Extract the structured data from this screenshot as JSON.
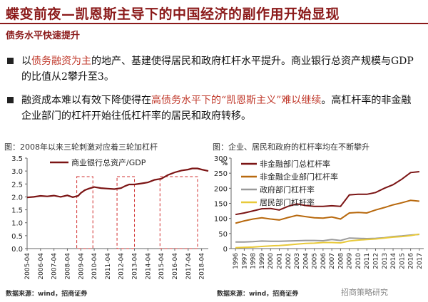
{
  "header": {
    "title": "蝶变前夜—凯恩斯主导下的中国经济的副作用开始显现",
    "subtitle": "债务水平快速提升"
  },
  "bullets": [
    {
      "t1": "以",
      "hl": "债务融资为主",
      "t2": "的地产、基建使得居民和政府杠杆水平提升。商业银行总资产规模与GDP的比值从2攀升至3。"
    },
    {
      "t1": "融资成本难以有效下降使得在",
      "hl": "高债务水平下的“凯恩斯主义”难以继续",
      "t2": "。高杠杆率的非金融企业部门的杠杆开始往低杠杆率的居民和政府转移。"
    }
  ],
  "captions": {
    "left": "图：2008年以来三轮刺激对应着三轮加杠杆",
    "right": "图：企业、居民和政府的杠杆率均在不断攀升"
  },
  "sources": {
    "left": "数据来源：wind，招商证券",
    "right": "数据来源：wind，招商证券"
  },
  "watermark": "招商策略研究",
  "chart_data": [
    {
      "type": "line",
      "title": "",
      "legend": [
        "商业银行总资产/GDP"
      ],
      "x": [
        "2005-04",
        "2006-04",
        "2007-04",
        "2008-04",
        "2009-04",
        "2010-04",
        "2011-04",
        "2012-04",
        "2013-04",
        "2014-04",
        "2015-04",
        "2016-04",
        "2017-04",
        "2018-04"
      ],
      "ylim": [
        0,
        3.5
      ],
      "yticks": [
        "0.0",
        "0.5",
        "1.0",
        "1.5",
        "2.0",
        "2.5",
        "3.0",
        "3.5"
      ],
      "series": [
        {
          "name": "商业银行总资产/GDP",
          "color": "#7b1414",
          "x": [
            2005.0,
            2005.5,
            2006.0,
            2006.5,
            2007.0,
            2007.5,
            2008.0,
            2008.4,
            2008.8,
            2009.0,
            2009.3,
            2009.6,
            2010.0,
            2010.5,
            2011.0,
            2011.5,
            2012.0,
            2012.3,
            2012.6,
            2013.0,
            2013.5,
            2014.0,
            2014.5,
            2015.0,
            2015.5,
            2016.0,
            2016.5,
            2017.0,
            2017.3,
            2017.7,
            2018.0,
            2018.5
          ],
          "y": [
            1.98,
            2.0,
            2.04,
            2.02,
            2.05,
            2.0,
            2.06,
            1.99,
            2.04,
            2.15,
            2.26,
            2.32,
            2.38,
            2.34,
            2.32,
            2.3,
            2.34,
            2.42,
            2.48,
            2.48,
            2.52,
            2.56,
            2.66,
            2.7,
            2.85,
            2.95,
            3.02,
            3.06,
            3.1,
            3.1,
            3.06,
            3.0
          ]
        }
      ],
      "highlight_ranges": [
        [
          2008.7,
          2009.9
        ],
        [
          2011.7,
          2013.0
        ],
        [
          2014.9,
          2017.7
        ]
      ]
    },
    {
      "type": "line",
      "title": "",
      "x": [
        "1996",
        "1997",
        "1998",
        "1999",
        "2000",
        "2001",
        "2002",
        "2003",
        "2004",
        "2005",
        "2006",
        "2007",
        "2008",
        "2009",
        "2010",
        "2011",
        "2012",
        "2013",
        "2014",
        "2015",
        "2016",
        "2017"
      ],
      "ylim": [
        0,
        300
      ],
      "yticks": [
        "0",
        "50",
        "100",
        "150",
        "200",
        "250",
        "300"
      ],
      "yunit": "%",
      "series": [
        {
          "name": "非金融部门总杠杆率",
          "color": "#7b1414",
          "values": [
            113,
            118,
            125,
            132,
            133,
            128,
            140,
            148,
            143,
            140,
            140,
            142,
            140,
            178,
            180,
            180,
            186,
            200,
            212,
            230,
            252,
            255
          ]
        },
        {
          "name": "非金融企业部门杠杆率",
          "color": "#b8690e",
          "values": [
            84,
            92,
            98,
            102,
            98,
            95,
            103,
            110,
            106,
            102,
            101,
            105,
            98,
            118,
            120,
            118,
            128,
            136,
            145,
            152,
            160,
            157
          ]
        },
        {
          "name": "政府部门杠杆率",
          "color": "#9a9a9a",
          "values": [
            22,
            22,
            23,
            25,
            24,
            24,
            25,
            26,
            27,
            27,
            26,
            30,
            27,
            35,
            34,
            33,
            34,
            36,
            40,
            42,
            45,
            47
          ]
        },
        {
          "name": "居民部门杠杆率",
          "color": "#e8c93a",
          "values": [
            3,
            4,
            5,
            7,
            9,
            10,
            12,
            15,
            17,
            18,
            20,
            20,
            19,
            25,
            28,
            30,
            32,
            35,
            38,
            40,
            43,
            48
          ]
        }
      ]
    }
  ]
}
